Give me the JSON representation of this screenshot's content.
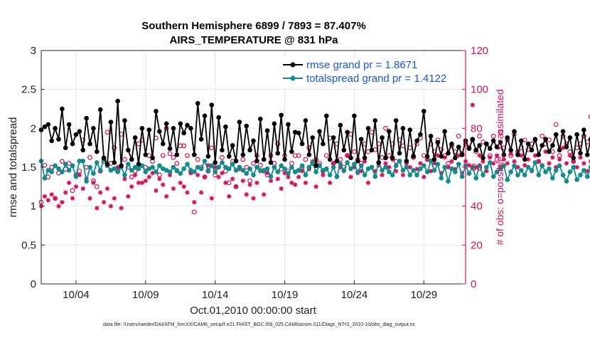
{
  "chart_data": {
    "type": "line",
    "title_line1": "Southern Hemisphere 6899 / 7893 = 87.407%",
    "title_line2": "AIRS_TEMPERATURE @ 831 hPa",
    "xlabel": "Oct.01,2010 00:00:00 start",
    "ylabel_left": "rmse and totalspread",
    "ylabel_right": "# of obs: o=possible; ×=assimilated",
    "footer": "data file: /Users/raeder/DAI/ATM_forcXX/CAM6_setup/f.e21.FHIST_BGC.f09_025.CAM6assim.011/Diags_NTrS_2010-10/obs_diag_output.nc",
    "x_range": [
      1.5,
      32.0
    ],
    "ylim_left": [
      0,
      3
    ],
    "ylim_right": [
      0,
      120
    ],
    "yticks_left": [
      "0",
      "0.5",
      "1",
      "1.5",
      "2",
      "2.5",
      "3"
    ],
    "yticks_right": [
      "0",
      "20",
      "40",
      "60",
      "80",
      "100",
      "120"
    ],
    "xticks": [
      {
        "value": 4,
        "label": "10/04"
      },
      {
        "value": 9,
        "label": "10/09"
      },
      {
        "value": 14,
        "label": "10/14"
      },
      {
        "value": 19,
        "label": "10/19"
      },
      {
        "value": 24,
        "label": "10/24"
      },
      {
        "value": 29,
        "label": "10/29"
      }
    ],
    "colors": {
      "rmse": "#000000",
      "spread": "#108c8c",
      "obs": "#d6105a",
      "legend_text": "#1a57d6"
    },
    "series": [
      {
        "name": "rmse grand pr = 1.8671",
        "axis": "left",
        "x_start": 1.5,
        "x_step": 0.25,
        "values": [
          1.98,
          2.02,
          2.05,
          1.84,
          2.0,
          1.86,
          2.25,
          1.75,
          2.05,
          1.8,
          1.92,
          1.96,
          1.72,
          2.13,
          1.8,
          2.0,
          1.7,
          2.24,
          1.62,
          1.54,
          2.08,
          1.56,
          2.35,
          1.52,
          2.1,
          1.72,
          1.6,
          1.88,
          1.54,
          2.0,
          1.66,
          1.98,
          1.62,
          2.22,
          1.96,
          1.8,
          2.06,
          1.74,
          2.0,
          1.66,
          2.06,
          1.94,
          2.04,
          2.0,
          1.66,
          2.32,
          1.86,
          2.16,
          1.64,
          2.3,
          1.56,
          2.14,
          1.72,
          2.02,
          1.64,
          1.78,
          1.58,
          2.08,
          1.66,
          2.03,
          1.72,
          1.84,
          1.58,
          2.12,
          1.6,
          1.97,
          1.56,
          2.06,
          1.68,
          2.17,
          1.6,
          2.05,
          1.7,
          1.95,
          1.94,
          1.8,
          2.1,
          1.66,
          1.88,
          1.52,
          1.96,
          1.8,
          2.16,
          1.6,
          1.88,
          1.58,
          2.04,
          1.72,
          1.95,
          1.62,
          2.16,
          1.58,
          1.86,
          1.62,
          2.0,
          1.72,
          2.1,
          1.56,
          1.88,
          1.62,
          1.96,
          1.62,
          2.1,
          1.68,
          2.0,
          1.58,
          1.98,
          1.64,
          1.84,
          1.92,
          2.22,
          1.64,
          1.9,
          1.6,
          1.82,
          1.64,
          1.96,
          1.68,
          1.8,
          1.62,
          1.76,
          1.66,
          1.84,
          1.74,
          1.86,
          1.72,
          1.78,
          1.62,
          1.8,
          1.74,
          1.84,
          1.76,
          1.82,
          1.66,
          1.88,
          1.72,
          1.96,
          1.66,
          1.84,
          1.6,
          1.8,
          1.72,
          1.86,
          1.66,
          1.78,
          1.86,
          1.7,
          1.78,
          1.92,
          1.72,
          1.96,
          1.76,
          1.88,
          1.62,
          1.92,
          1.68,
          1.98,
          1.66,
          1.86,
          1.76,
          1.84,
          1.72,
          1.74,
          1.94,
          1.9,
          1.84,
          1.88,
          1.66,
          1.74,
          1.92,
          1.82,
          1.7,
          1.75
        ]
      },
      {
        "name": "totalspread grand pr = 1.4122",
        "axis": "left",
        "x_start": 1.5,
        "x_step": 0.25,
        "values": [
          1.58,
          1.36,
          1.46,
          1.44,
          1.52,
          1.48,
          1.44,
          1.54,
          1.46,
          1.52,
          1.38,
          1.58,
          1.58,
          1.32,
          1.5,
          1.42,
          1.56,
          1.46,
          1.6,
          1.52,
          1.46,
          1.48,
          1.44,
          1.5,
          1.4,
          1.54,
          1.46,
          1.5,
          1.48,
          1.52,
          1.44,
          1.48,
          1.5,
          1.44,
          1.52,
          1.48,
          1.46,
          1.44,
          1.5,
          1.46,
          1.42,
          1.48,
          1.54,
          1.46,
          1.44,
          1.5,
          1.48,
          1.58,
          1.46,
          1.52,
          1.44,
          1.5,
          1.56,
          1.5,
          1.48,
          1.54,
          1.46,
          1.5,
          1.46,
          1.42,
          1.48,
          1.4,
          1.5,
          1.46,
          1.46,
          1.48,
          1.38,
          1.5,
          1.44,
          1.52,
          1.48,
          1.42,
          1.5,
          1.44,
          1.46,
          1.52,
          1.4,
          1.5,
          1.56,
          1.44,
          1.52,
          1.46,
          1.48,
          1.4,
          1.5,
          1.38,
          1.54,
          1.46,
          1.56,
          1.48,
          1.54,
          1.44,
          1.52,
          1.4,
          1.48,
          1.5,
          1.38,
          1.56,
          1.46,
          1.5,
          1.44,
          1.4,
          1.52,
          1.58,
          1.46,
          1.5,
          1.4,
          1.46,
          1.4,
          1.48,
          1.52,
          1.44,
          1.58,
          1.46,
          1.54,
          1.36,
          1.5,
          1.32,
          1.48,
          1.44,
          1.54,
          1.38,
          1.52,
          1.42,
          1.5,
          1.36,
          1.52,
          1.4,
          1.5,
          1.56,
          1.38,
          1.44,
          1.48,
          1.52,
          1.34,
          1.44,
          1.52,
          1.4,
          1.46,
          1.4,
          1.5,
          1.46,
          1.56,
          1.4,
          1.52,
          1.44,
          1.48,
          1.36,
          1.46,
          1.52,
          1.4,
          1.32,
          1.44,
          1.5,
          1.34,
          1.4,
          1.46,
          1.38,
          1.5,
          1.44,
          1.42,
          1.34,
          1.4,
          1.44,
          1.48,
          1.42,
          1.5,
          1.4,
          1.46,
          1.36,
          1.44,
          1.38,
          1.46,
          1.4
        ]
      },
      {
        "name": "possible obs",
        "axis": "right",
        "marker": "circle",
        "x_start": 1.5,
        "x_step": 0.25,
        "values": [
          42,
          61,
          55,
          60,
          44,
          57,
          63,
          59,
          62,
          48,
          56,
          58,
          74,
          60,
          65,
          53,
          50,
          58,
          63,
          78,
          62,
          70,
          58,
          77,
          64,
          60,
          55,
          58,
          72,
          74,
          60,
          66,
          63,
          75,
          56,
          66,
          80,
          67,
          65,
          62,
          71,
          71,
          66,
          58,
          37,
          64,
          60,
          55,
          58,
          70,
          56,
          60,
          65,
          58,
          52,
          63,
          50,
          60,
          64,
          60,
          53,
          62,
          66,
          61,
          58,
          56,
          66,
          62,
          72,
          59,
          66,
          58,
          62,
          66,
          66,
          60,
          64,
          70,
          62,
          64,
          62,
          58,
          66,
          75,
          62,
          72,
          64,
          60,
          66,
          77,
          68,
          64,
          62,
          72,
          68,
          78,
          69,
          72,
          65,
          80,
          66,
          72,
          63,
          74,
          71,
          63,
          70,
          65,
          72,
          75,
          66,
          64,
          72,
          68,
          74,
          69,
          66,
          62,
          71,
          68,
          76,
          67,
          72,
          70,
          74,
          68,
          76,
          73,
          72,
          66,
          76,
          64,
          78,
          70,
          74,
          66,
          77,
          68,
          70,
          74,
          69,
          72,
          74,
          63,
          76,
          72,
          74,
          68,
          82,
          66,
          76,
          72,
          68,
          63,
          70,
          72,
          76,
          73,
          86,
          68,
          71,
          74,
          70,
          66,
          80,
          75,
          76,
          74,
          80,
          74,
          70,
          84,
          76,
          66
        ]
      },
      {
        "name": "assimilated obs",
        "axis": "right",
        "marker": "star",
        "x_start": 1.5,
        "x_step": 0.25,
        "values": [
          40,
          45,
          43,
          46,
          44,
          40,
          42,
          47,
          52,
          44,
          50,
          56,
          49,
          54,
          44,
          52,
          39,
          47,
          42,
          49,
          40,
          44,
          60,
          39,
          54,
          45,
          50,
          56,
          52,
          52,
          53,
          55,
          57,
          48,
          54,
          51,
          45,
          56,
          49,
          58,
          52,
          50,
          47,
          57,
          42,
          56,
          47,
          55,
          61,
          44,
          60,
          55,
          57,
          52,
          45,
          54,
          50,
          59,
          53,
          46,
          51,
          44,
          52,
          58,
          46,
          57,
          53,
          60,
          54,
          49,
          57,
          55,
          52,
          51,
          55,
          58,
          52,
          59,
          63,
          50,
          61,
          56,
          59,
          52,
          62,
          55,
          60,
          58,
          66,
          55,
          60,
          57,
          58,
          63,
          52,
          60,
          58,
          61,
          56,
          62,
          60,
          64,
          58,
          63,
          56,
          62,
          60,
          66,
          59,
          62,
          55,
          64,
          58,
          62,
          66,
          57,
          65,
          60,
          63,
          59,
          66,
          57,
          63,
          61,
          92,
          60,
          66,
          63,
          58,
          65,
          62,
          66,
          60,
          64,
          62,
          67,
          63,
          60,
          66,
          61,
          64,
          58,
          66,
          63,
          61,
          68,
          62,
          65,
          60,
          64,
          70,
          62,
          66,
          63,
          60,
          65,
          62,
          58,
          63,
          66,
          60,
          64,
          68,
          62,
          66,
          61,
          67,
          63,
          62,
          66,
          60,
          65,
          64,
          0
        ]
      }
    ]
  }
}
